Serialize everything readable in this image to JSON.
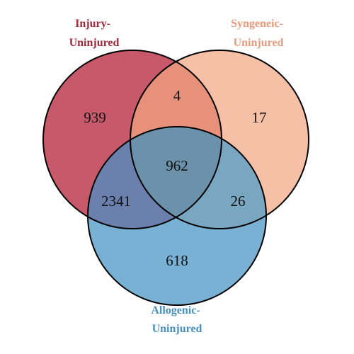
{
  "sets": [
    {
      "id": "A",
      "label_lines": [
        "Injury-",
        "Uninjured"
      ],
      "color": "#c8596a",
      "label_color": "#a3283c"
    },
    {
      "id": "B",
      "label_lines": [
        "Syngeneic-",
        "Uninjured"
      ],
      "color": "#f6c0a6",
      "label_color": "#e99a7b"
    },
    {
      "id": "C",
      "label_lines": [
        "Allogenic-",
        "Uninjured"
      ],
      "color": "#79b1d4",
      "label_color": "#4a90bd"
    }
  ],
  "regions": {
    "A_only": "939",
    "B_only": "17",
    "C_only": "618",
    "AB": "4",
    "AC": "2341",
    "BC": "26",
    "ABC": "962"
  },
  "overlap_colors": {
    "AB": "#e8917a",
    "AC": "#6b80ad",
    "BC": "#79a7c1",
    "ABC": "#6c91aa"
  }
}
